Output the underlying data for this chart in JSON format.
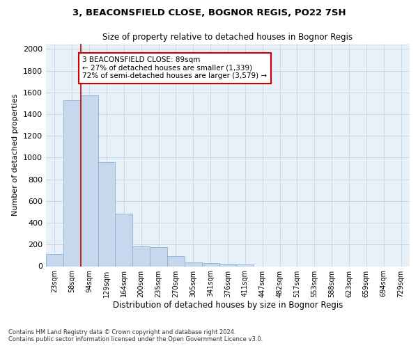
{
  "title": "3, BEACONSFIELD CLOSE, BOGNOR REGIS, PO22 7SH",
  "subtitle": "Size of property relative to detached houses in Bognor Regis",
  "xlabel": "Distribution of detached houses by size in Bognor Regis",
  "ylabel": "Number of detached properties",
  "footer_line1": "Contains HM Land Registry data © Crown copyright and database right 2024.",
  "footer_line2": "Contains public sector information licensed under the Open Government Licence v3.0.",
  "categories": [
    "23sqm",
    "58sqm",
    "94sqm",
    "129sqm",
    "164sqm",
    "200sqm",
    "235sqm",
    "270sqm",
    "305sqm",
    "341sqm",
    "376sqm",
    "411sqm",
    "447sqm",
    "482sqm",
    "517sqm",
    "553sqm",
    "588sqm",
    "623sqm",
    "659sqm",
    "694sqm",
    "729sqm"
  ],
  "values": [
    110,
    1530,
    1570,
    960,
    485,
    185,
    175,
    95,
    35,
    30,
    20,
    15,
    0,
    0,
    0,
    0,
    0,
    0,
    0,
    0,
    0
  ],
  "bar_color": "#c5d8ed",
  "bar_edge_color": "#8ab4d4",
  "grid_color": "#c8d8e8",
  "background_color": "#e8f0f8",
  "annotation_text": "3 BEACONSFIELD CLOSE: 89sqm\n← 27% of detached houses are smaller (1,339)\n72% of semi-detached houses are larger (3,579) →",
  "annotation_box_color": "#ffffff",
  "annotation_box_edge": "#cc0000",
  "property_line_x": 1.5,
  "ylim": [
    0,
    2050
  ],
  "yticks": [
    0,
    200,
    400,
    600,
    800,
    1000,
    1200,
    1400,
    1600,
    1800,
    2000
  ]
}
